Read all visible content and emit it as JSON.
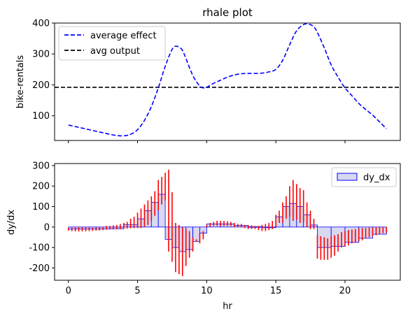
{
  "chart_data": [
    {
      "type": "line",
      "title": "rhale plot",
      "ylabel": "bike-rentals",
      "xlabel": "",
      "xlim": [
        -1,
        24
      ],
      "ylim": [
        20,
        400
      ],
      "xticks": [
        0,
        5,
        10,
        15,
        20
      ],
      "yticks": [
        100,
        200,
        300,
        400
      ],
      "legend": "top-left",
      "series": [
        {
          "name": "average effect",
          "style": "dashed",
          "color": "#0000ff",
          "x": [
            0,
            0.5,
            1,
            1.5,
            2,
            2.5,
            3,
            3.5,
            4,
            4.5,
            5,
            5.5,
            6,
            6.5,
            7,
            7.5,
            7.8,
            8.2,
            8.5,
            9,
            9.5,
            9.8,
            10,
            10.5,
            11,
            11.5,
            12,
            12.5,
            13,
            13.5,
            14,
            14.5,
            15,
            15.5,
            16,
            16.5,
            17,
            17.3,
            17.7,
            18,
            18.5,
            19,
            19.5,
            20,
            20.5,
            21,
            21.5,
            22,
            22.5,
            23
          ],
          "y": [
            70,
            65,
            60,
            55,
            50,
            45,
            40,
            36,
            35,
            40,
            55,
            85,
            130,
            190,
            260,
            315,
            325,
            315,
            285,
            230,
            196,
            190,
            192,
            205,
            215,
            225,
            232,
            236,
            237,
            237,
            238,
            242,
            250,
            280,
            330,
            375,
            395,
            397,
            390,
            370,
            320,
            265,
            225,
            190,
            165,
            140,
            120,
            102,
            80,
            58
          ]
        },
        {
          "name": "avg output",
          "style": "dashed",
          "color": "#000000",
          "y_const": 192
        }
      ]
    },
    {
      "type": "bar",
      "title": "",
      "ylabel": "dy/dx",
      "xlabel": "hr",
      "xlim": [
        -1,
        24
      ],
      "ylim": [
        -260,
        310
      ],
      "xticks": [
        0,
        5,
        10,
        15,
        20
      ],
      "yticks": [
        -200,
        -100,
        0,
        100,
        200,
        300
      ],
      "legend": "top-right",
      "series": [
        {
          "name": "dy_dx",
          "bar_fill": "#d8d8f0",
          "bar_edge": "#0000ff",
          "std_color": "#ff0000",
          "bins": [
            [
              0,
              1,
              -10
            ],
            [
              1,
              2,
              -10
            ],
            [
              2,
              3,
              -10
            ],
            [
              3,
              4,
              -8
            ],
            [
              4,
              5,
              12
            ],
            [
              5,
              5.5,
              40
            ],
            [
              5.5,
              6,
              80
            ],
            [
              6,
              6.5,
              120
            ],
            [
              6.5,
              7,
              160
            ],
            [
              7,
              7.5,
              -60
            ],
            [
              7.5,
              8,
              -100
            ],
            [
              8,
              8.5,
              -120
            ],
            [
              8.5,
              9,
              -110
            ],
            [
              9,
              9.5,
              -70
            ],
            [
              9.5,
              10,
              -30
            ],
            [
              10,
              11,
              15
            ],
            [
              11,
              12,
              15
            ],
            [
              12,
              13,
              8
            ],
            [
              13,
              14,
              2
            ],
            [
              14,
              15,
              0
            ],
            [
              15,
              15.5,
              50
            ],
            [
              15.5,
              16,
              100
            ],
            [
              16,
              16.5,
              115
            ],
            [
              16.5,
              17,
              100
            ],
            [
              17,
              17.5,
              60
            ],
            [
              17.5,
              18,
              10
            ],
            [
              18,
              19,
              -100
            ],
            [
              19,
              20,
              -95
            ],
            [
              20,
              21,
              -75
            ],
            [
              21,
              22,
              -55
            ],
            [
              22,
              23,
              -35
            ]
          ],
          "std_x": [
            0,
            0.25,
            0.5,
            0.75,
            1,
            1.25,
            1.5,
            1.75,
            2,
            2.25,
            2.5,
            2.75,
            3,
            3.25,
            3.5,
            3.75,
            4,
            4.25,
            4.5,
            4.75,
            5,
            5.25,
            5.5,
            5.75,
            6,
            6.25,
            6.5,
            6.75,
            7,
            7.25,
            7.5,
            7.75,
            8,
            8.25,
            8.5,
            8.75,
            9,
            9.25,
            9.5,
            9.75,
            10,
            10.25,
            10.5,
            10.75,
            11,
            11.25,
            11.5,
            11.75,
            12,
            12.25,
            12.5,
            12.75,
            13,
            13.25,
            13.5,
            13.75,
            14,
            14.25,
            14.5,
            14.75,
            15,
            15.25,
            15.5,
            15.75,
            16,
            16.25,
            16.5,
            16.75,
            17,
            17.25,
            17.5,
            17.75,
            18,
            18.25,
            18.5,
            18.75,
            19,
            19.25,
            19.5,
            19.75,
            20,
            20.25,
            20.5,
            20.75,
            21,
            21.25,
            21.5,
            21.75,
            22,
            22.25,
            22.5,
            22.75,
            23
          ],
          "std_lo": [
            -18,
            -20,
            -21,
            -22,
            -22,
            -21,
            -20,
            -19,
            -18,
            -17,
            -15,
            -12,
            -12,
            -12,
            -11,
            -11,
            -10,
            -8,
            -6,
            -5,
            -5,
            -5,
            0,
            10,
            30,
            55,
            80,
            110,
            130,
            -120,
            -170,
            -220,
            -230,
            -240,
            -190,
            -150,
            -120,
            -70,
            -80,
            -60,
            0,
            0,
            5,
            5,
            5,
            5,
            5,
            5,
            0,
            0,
            0,
            -5,
            -10,
            -10,
            -10,
            -15,
            -20,
            -20,
            -15,
            -10,
            0,
            20,
            20,
            40,
            50,
            30,
            35,
            20,
            25,
            0,
            -10,
            -10,
            -155,
            -160,
            -160,
            -160,
            -150,
            -140,
            -120,
            -100,
            -95,
            -90,
            -80,
            -75,
            -70,
            -65,
            -55,
            -50,
            -45,
            -40,
            -35,
            -30,
            -30,
            -25,
            -25
          ],
          "std_hi": [
            -5,
            -3,
            -2,
            0,
            0,
            -1,
            -2,
            -3,
            -2,
            -1,
            0,
            5,
            5,
            8,
            10,
            15,
            20,
            25,
            40,
            50,
            70,
            90,
            110,
            130,
            150,
            175,
            230,
            245,
            265,
            280,
            170,
            20,
            10,
            0,
            -10,
            -20,
            -50,
            -60,
            -30,
            -20,
            10,
            20,
            25,
            30,
            30,
            30,
            28,
            25,
            20,
            15,
            15,
            10,
            10,
            8,
            5,
            5,
            10,
            15,
            20,
            30,
            60,
            80,
            120,
            150,
            200,
            230,
            210,
            190,
            180,
            120,
            80,
            40,
            -40,
            -45,
            -50,
            -55,
            -45,
            -40,
            -35,
            -25,
            -20,
            -15,
            -12,
            -10,
            -8,
            -5,
            -5,
            -3,
            -2,
            0,
            0,
            0,
            0,
            0,
            0
          ]
        }
      ]
    }
  ]
}
